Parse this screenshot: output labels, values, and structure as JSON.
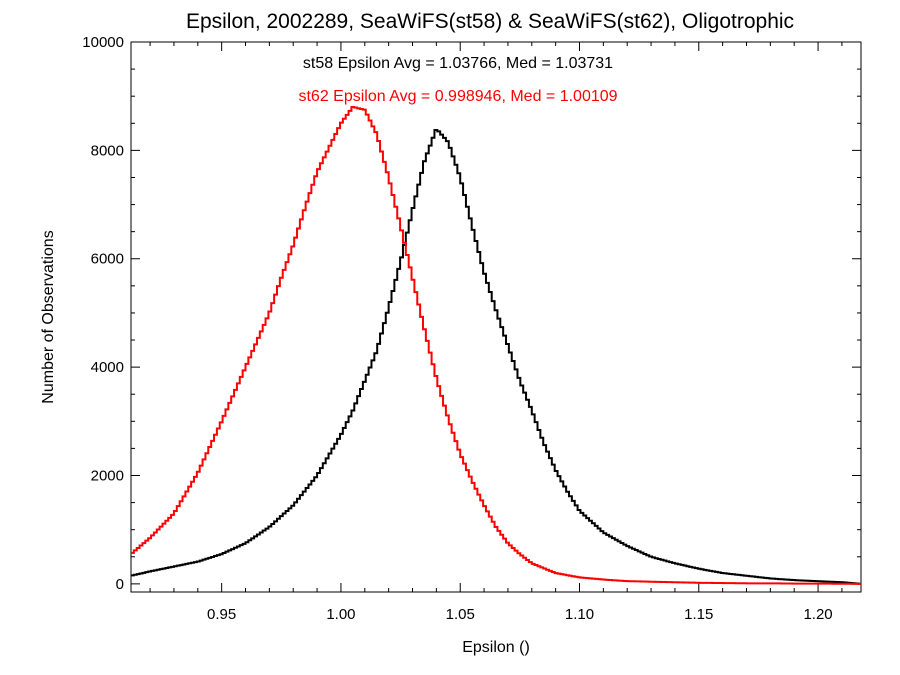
{
  "chart_data": {
    "type": "line",
    "step": true,
    "title": "Epsilon, 2002289, SeaWiFS(st58) & SeaWiFS(st62), Oligotrophic",
    "xlabel": "Epsilon ()",
    "ylabel": "Number of Observations",
    "xlim": [
      0.912,
      1.218
    ],
    "ylim": [
      -150,
      10000
    ],
    "x_ticks": [
      0.95,
      1.0,
      1.05,
      1.1,
      1.15,
      1.2
    ],
    "x_tick_labels": [
      "0.95",
      "1.00",
      "1.05",
      "1.10",
      "1.15",
      "1.20"
    ],
    "y_ticks": [
      0,
      2000,
      4000,
      6000,
      8000,
      10000
    ],
    "y_tick_labels": [
      "0",
      "2000",
      "4000",
      "6000",
      "8000",
      "10000"
    ],
    "grid": false,
    "annotations": [
      {
        "text": "st58 Epsilon Avg = 1.03766, Med = 1.03731",
        "color": "#000000"
      },
      {
        "text": "st62 Epsilon Avg = 0.998946, Med = 1.00109",
        "color": "#ff0000"
      }
    ],
    "series": [
      {
        "color": "#000000",
        "x": [
          0.912,
          0.92,
          0.93,
          0.94,
          0.95,
          0.96,
          0.97,
          0.98,
          0.99,
          1.0,
          1.005,
          1.01,
          1.015,
          1.02,
          1.025,
          1.03,
          1.035,
          1.04,
          1.045,
          1.05,
          1.055,
          1.06,
          1.065,
          1.07,
          1.075,
          1.08,
          1.085,
          1.09,
          1.095,
          1.1,
          1.11,
          1.12,
          1.13,
          1.14,
          1.15,
          1.16,
          1.17,
          1.18,
          1.19,
          1.2,
          1.21,
          1.218
        ],
        "y": [
          150,
          230,
          320,
          410,
          550,
          750,
          1050,
          1450,
          2000,
          2750,
          3200,
          3750,
          4300,
          5100,
          5950,
          6900,
          7800,
          8400,
          8150,
          7500,
          6600,
          5750,
          5050,
          4400,
          3750,
          3200,
          2600,
          2100,
          1700,
          1350,
          950,
          700,
          500,
          380,
          280,
          200,
          150,
          100,
          70,
          50,
          30,
          0
        ]
      },
      {
        "color": "#ff0000",
        "x": [
          0.912,
          0.92,
          0.93,
          0.94,
          0.95,
          0.96,
          0.97,
          0.975,
          0.98,
          0.985,
          0.99,
          0.995,
          1.0,
          1.005,
          1.01,
          1.015,
          1.02,
          1.025,
          1.03,
          1.035,
          1.04,
          1.045,
          1.05,
          1.055,
          1.06,
          1.065,
          1.07,
          1.075,
          1.08,
          1.09,
          1.1,
          1.11,
          1.12,
          1.13,
          1.14,
          1.15,
          1.16,
          1.17,
          1.18,
          1.19,
          1.2,
          1.218
        ],
        "y": [
          550,
          850,
          1300,
          2050,
          3000,
          4000,
          5000,
          5650,
          6250,
          6950,
          7600,
          8050,
          8500,
          8800,
          8750,
          8300,
          7500,
          6600,
          5650,
          4700,
          3800,
          3050,
          2400,
          1900,
          1450,
          1050,
          750,
          550,
          380,
          200,
          120,
          80,
          50,
          40,
          30,
          20,
          15,
          10,
          10,
          5,
          5,
          0
        ]
      }
    ]
  }
}
